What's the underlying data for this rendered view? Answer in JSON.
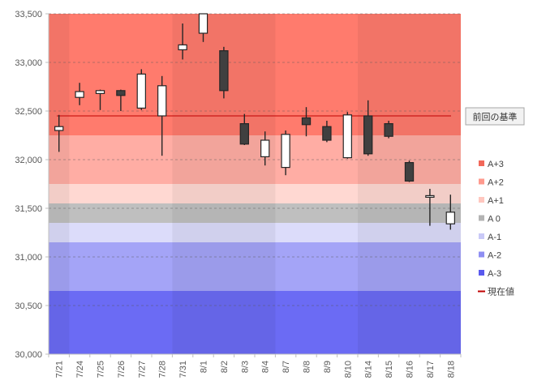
{
  "chart_data": {
    "type": "candlestick",
    "title": "",
    "xlabel": "",
    "ylabel": "",
    "ylim": [
      30000,
      33500
    ],
    "yticks": [
      30000,
      30500,
      31000,
      31500,
      32000,
      32500,
      33000,
      33500
    ],
    "yticks_labels": [
      "30,000",
      "30,500",
      "31,000",
      "31,500",
      "32,000",
      "32,500",
      "33,000",
      "33,500"
    ],
    "categories": [
      "7/21",
      "7/24",
      "7/25",
      "7/26",
      "7/27",
      "7/28",
      "7/31",
      "8/1",
      "8/2",
      "8/3",
      "8/4",
      "8/7",
      "8/8",
      "8/9",
      "8/10",
      "8/14",
      "8/15",
      "8/16",
      "8/17",
      "8/18"
    ],
    "candles": [
      {
        "date": "7/21",
        "open": 32300,
        "high": 32460,
        "low": 32080,
        "close": 32340
      },
      {
        "date": "7/24",
        "open": 32640,
        "high": 32790,
        "low": 32560,
        "close": 32700
      },
      {
        "date": "7/25",
        "open": 32680,
        "high": 32720,
        "low": 32510,
        "close": 32710
      },
      {
        "date": "7/26",
        "open": 32710,
        "high": 32720,
        "low": 32500,
        "close": 32660
      },
      {
        "date": "7/27",
        "open": 32530,
        "high": 32930,
        "low": 32510,
        "close": 32880
      },
      {
        "date": "7/28",
        "open": 32450,
        "high": 32860,
        "low": 32040,
        "close": 32760
      },
      {
        "date": "7/31",
        "open": 33130,
        "high": 33400,
        "low": 33030,
        "close": 33180
      },
      {
        "date": "8/1",
        "open": 33300,
        "high": 33520,
        "low": 33210,
        "close": 33510
      },
      {
        "date": "8/2",
        "open": 33120,
        "high": 33160,
        "low": 32630,
        "close": 32710
      },
      {
        "date": "8/3",
        "open": 32370,
        "high": 32470,
        "low": 32150,
        "close": 32160
      },
      {
        "date": "8/4",
        "open": 32030,
        "high": 32290,
        "low": 31940,
        "close": 32200
      },
      {
        "date": "8/7",
        "open": 31920,
        "high": 32300,
        "low": 31840,
        "close": 32260
      },
      {
        "date": "8/8",
        "open": 32430,
        "high": 32540,
        "low": 32240,
        "close": 32360
      },
      {
        "date": "8/9",
        "open": 32340,
        "high": 32400,
        "low": 32180,
        "close": 32200
      },
      {
        "date": "8/10",
        "open": 32020,
        "high": 32490,
        "low": 32010,
        "close": 32460
      },
      {
        "date": "8/14",
        "open": 32450,
        "high": 32610,
        "low": 32040,
        "close": 32060
      },
      {
        "date": "8/15",
        "open": 32370,
        "high": 32400,
        "low": 32220,
        "close": 32240
      },
      {
        "date": "8/16",
        "open": 31970,
        "high": 31990,
        "low": 31770,
        "close": 31780
      },
      {
        "date": "8/17",
        "open": 31620,
        "high": 31700,
        "low": 31320,
        "close": 31630
      },
      {
        "date": "8/18",
        "open": 31340,
        "high": 31640,
        "low": 31280,
        "close": 31460
      }
    ],
    "reference_line": {
      "value": 32450,
      "label": "前回の基準",
      "color": "#c00000"
    },
    "bands": [
      {
        "name": "A+3",
        "from": 32250,
        "to": 33500,
        "color": "#ff7b6d"
      },
      {
        "name": "A+2",
        "from": 31750,
        "to": 32250,
        "color": "#ffada4"
      },
      {
        "name": "A+1",
        "from": 31550,
        "to": 31750,
        "color": "#ffd8d2"
      },
      {
        "name": "A 0",
        "from": 31350,
        "to": 31550,
        "color": "#bfbfbf"
      },
      {
        "name": "A-1",
        "from": 31150,
        "to": 31350,
        "color": "#dcdcfa"
      },
      {
        "name": "A-2",
        "from": 30650,
        "to": 31150,
        "color": "#a4a4f7"
      },
      {
        "name": "A-3",
        "from": 30000,
        "to": 30650,
        "color": "#6b6bf4"
      }
    ],
    "column_groups": [
      {
        "from": 0,
        "to": 0,
        "shade": "dark"
      },
      {
        "from": 1,
        "to": 5,
        "shade": "light"
      },
      {
        "from": 6,
        "to": 10,
        "shade": "dark"
      },
      {
        "from": 11,
        "to": 14,
        "shade": "light"
      },
      {
        "from": 15,
        "to": 19,
        "shade": "dark"
      }
    ],
    "legend": {
      "position": "right",
      "items": [
        {
          "label": "A+3",
          "color": "#f2685a",
          "kind": "box"
        },
        {
          "label": "A+2",
          "color": "#ff9a8e",
          "kind": "box"
        },
        {
          "label": "A+1",
          "color": "#ffc7bf",
          "kind": "box"
        },
        {
          "label": "A 0",
          "color": "#b3b3b3",
          "kind": "box"
        },
        {
          "label": "A-1",
          "color": "#c9c9f7",
          "kind": "box"
        },
        {
          "label": "A-2",
          "color": "#8f8ff3",
          "kind": "box"
        },
        {
          "label": "A-3",
          "color": "#5959ee",
          "kind": "box"
        },
        {
          "label": "現在値",
          "color": "#c00000",
          "kind": "line"
        }
      ]
    },
    "colors": {
      "up_fill": "#ffffff",
      "down_fill": "#404040",
      "candle_stroke": "#262626",
      "grid": "#595959",
      "axis": "#bfbfbf"
    }
  }
}
